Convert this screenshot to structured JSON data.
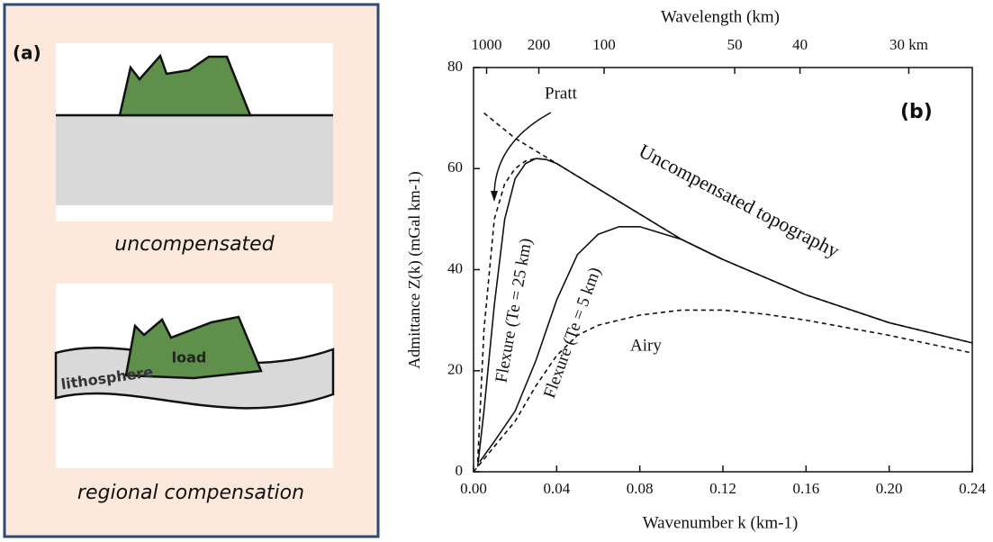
{
  "panel_a": {
    "label": "(a)",
    "top_caption": "uncompensated",
    "bottom_caption": "regional compensation",
    "load_label": "load",
    "lithosphere_label": "lithosphere"
  },
  "chart_data": {
    "type": "line",
    "panel_label": "(b)",
    "x_label": "Wavenumber k (km-1)",
    "y_label": "Admittance Z(k) (mGal km-1)",
    "x2_label": "Wavelength (km)",
    "xlim": [
      0,
      0.24
    ],
    "ylim": [
      0,
      80
    ],
    "xticks": [
      {
        "value": 0,
        "label": "0.00"
      },
      0.04,
      0.08,
      0.12,
      0.16,
      {
        "value": 0.2,
        "label": "0.20"
      },
      0.24
    ],
    "yticks": [
      0,
      20,
      40,
      60,
      80
    ],
    "x2ticks": [
      1000,
      200,
      100,
      50,
      40,
      {
        "value": 30,
        "label": "30 km"
      }
    ],
    "series": [
      {
        "name": "Uncompensated topography",
        "color": "#111111",
        "dashed": true,
        "x": [
          0.005,
          0.02,
          0.04,
          0.06,
          0.08,
          0.1,
          0.12,
          0.16,
          0.2,
          0.24
        ],
        "values": [
          71,
          66,
          61,
          56,
          51,
          46,
          42,
          35,
          29.5,
          25.5
        ]
      },
      {
        "name": "Pratt",
        "color": "#111111",
        "dashed": true,
        "x": [
          0.002,
          0.005,
          0.01,
          0.015,
          0.02,
          0.025,
          0.03,
          0.035
        ],
        "values": [
          2,
          28,
          50,
          57,
          60,
          61.5,
          62,
          61.8
        ]
      },
      {
        "name": "Flexure (Te = 25 km)",
        "color": "#111111",
        "dashed": false,
        "x": [
          0.002,
          0.005,
          0.01,
          0.015,
          0.02,
          0.025,
          0.03,
          0.035,
          0.04,
          0.06,
          0.08,
          0.1,
          0.12,
          0.16,
          0.2,
          0.24
        ],
        "values": [
          1,
          12,
          33,
          50,
          58,
          61,
          62,
          61.8,
          61,
          56,
          51,
          46,
          42,
          35,
          29.5,
          25.5
        ]
      },
      {
        "name": "Flexure (Te = 5 km)",
        "color": "#111111",
        "dashed": false,
        "x": [
          0.003,
          0.01,
          0.02,
          0.03,
          0.04,
          0.05,
          0.06,
          0.07,
          0.08,
          0.1,
          0.12
        ],
        "values": [
          2,
          6,
          12,
          22,
          34,
          43,
          47,
          48.5,
          48.5,
          46,
          42
        ]
      },
      {
        "name": "Airy",
        "color": "#111111",
        "dashed": true,
        "x": [
          0,
          0.01,
          0.02,
          0.03,
          0.04,
          0.05,
          0.06,
          0.08,
          0.1,
          0.12,
          0.14,
          0.16,
          0.2,
          0.24
        ],
        "values": [
          0,
          5,
          10,
          17,
          23,
          27,
          29,
          31,
          32,
          32,
          31.2,
          30,
          27,
          23.5
        ]
      }
    ]
  }
}
